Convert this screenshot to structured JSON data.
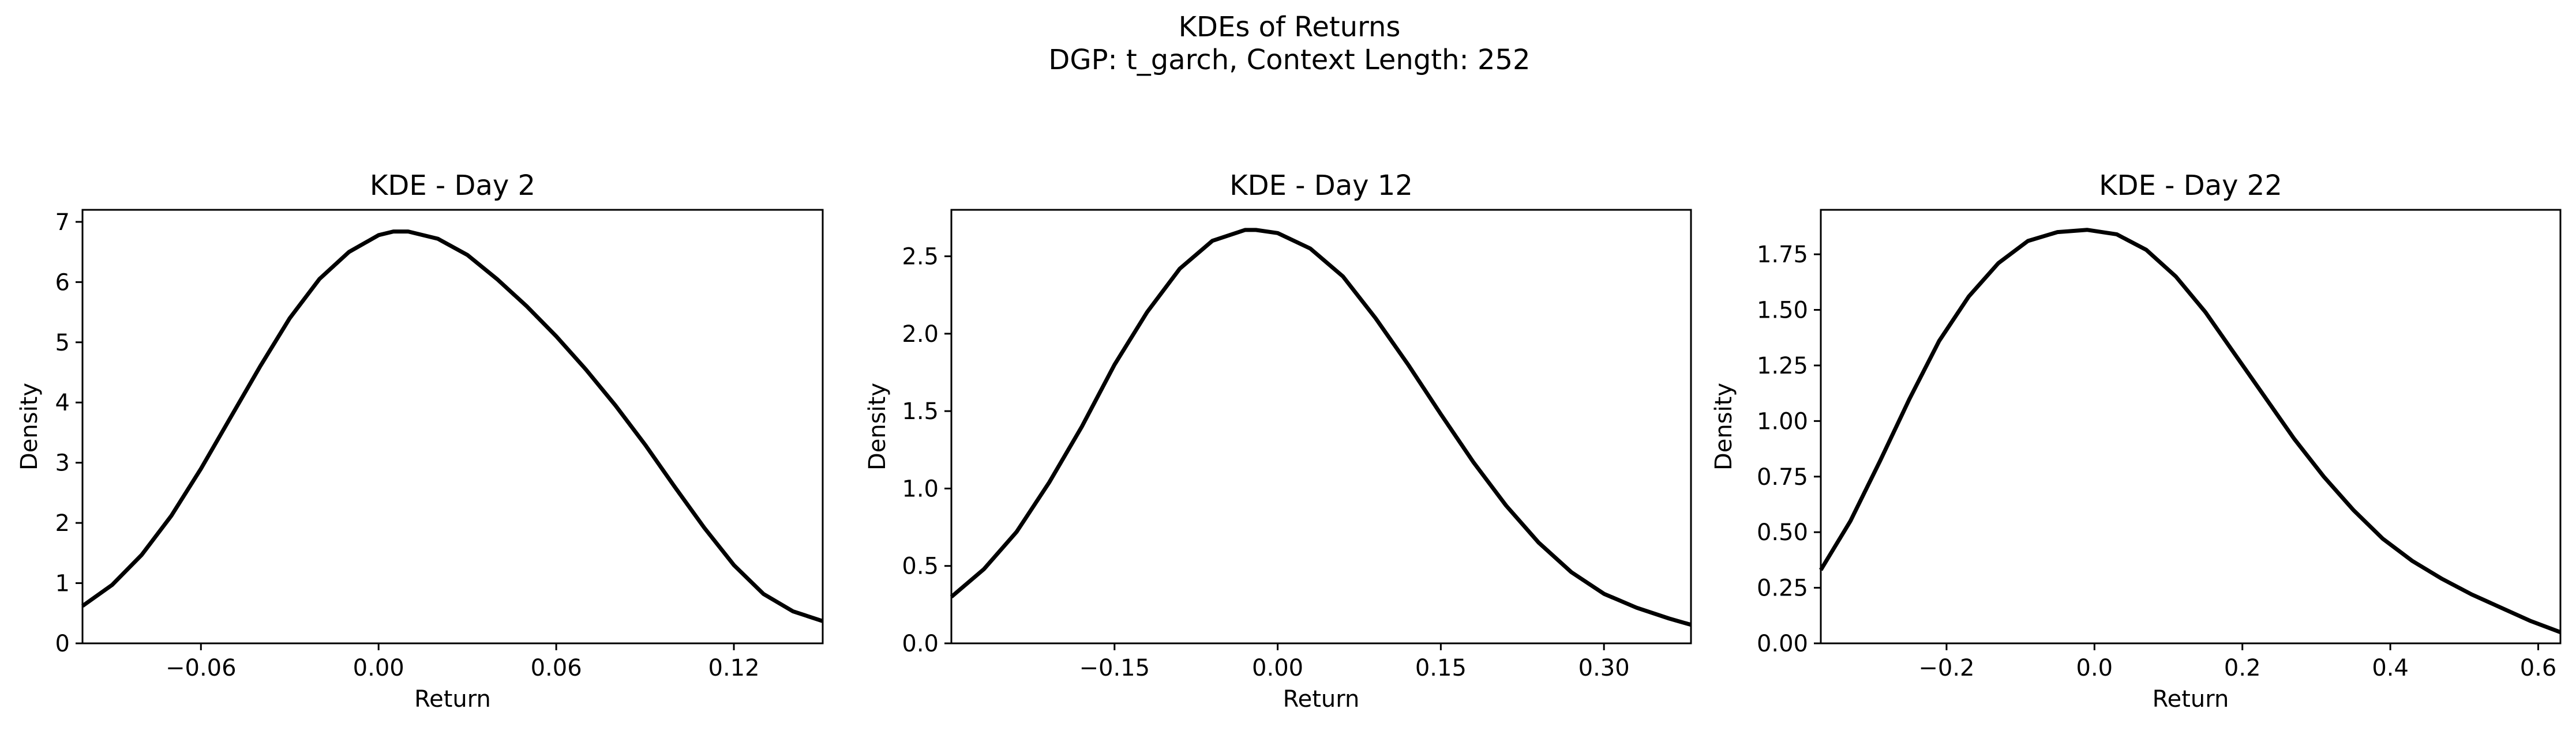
{
  "figure": {
    "title_line1": "KDEs of Returns",
    "title_line2": "DGP: t_garch, Context Length: 252"
  },
  "chart_data": [
    {
      "type": "line",
      "title": "KDE - Day 2",
      "xlabel": "Return",
      "ylabel": "Density",
      "xlim": [
        -0.1,
        0.15
      ],
      "ylim": [
        0,
        7.2
      ],
      "xticks": [
        -0.06,
        0.0,
        0.06,
        0.12
      ],
      "xtick_labels": [
        "−0.06",
        "0.00",
        "0.06",
        "0.12"
      ],
      "yticks": [
        0,
        1,
        2,
        3,
        4,
        5,
        6,
        7
      ],
      "ytick_labels": [
        "0",
        "1",
        "2",
        "3",
        "4",
        "5",
        "6",
        "7"
      ],
      "grid": false,
      "series": [
        {
          "color": "#000000",
          "x": [
            -0.1,
            -0.09,
            -0.08,
            -0.07,
            -0.06,
            -0.05,
            -0.04,
            -0.03,
            -0.02,
            -0.01,
            0.0,
            0.005,
            0.01,
            0.02,
            0.03,
            0.04,
            0.05,
            0.06,
            0.07,
            0.08,
            0.09,
            0.1,
            0.11,
            0.12,
            0.13,
            0.14,
            0.15
          ],
          "y": [
            0.62,
            0.97,
            1.47,
            2.12,
            2.9,
            3.75,
            4.6,
            5.4,
            6.05,
            6.5,
            6.78,
            6.84,
            6.84,
            6.72,
            6.45,
            6.05,
            5.6,
            5.1,
            4.55,
            3.95,
            3.3,
            2.6,
            1.92,
            1.3,
            0.82,
            0.53,
            0.37
          ]
        }
      ]
    },
    {
      "type": "line",
      "title": "KDE - Day 12",
      "xlabel": "Return",
      "ylabel": "Density",
      "xlim": [
        -0.3,
        0.38
      ],
      "ylim": [
        0,
        2.8
      ],
      "xticks": [
        -0.15,
        0.0,
        0.15,
        0.3
      ],
      "xtick_labels": [
        "−0.15",
        "0.00",
        "0.15",
        "0.30"
      ],
      "yticks": [
        0.0,
        0.5,
        1.0,
        1.5,
        2.0,
        2.5
      ],
      "ytick_labels": [
        "0.0",
        "0.5",
        "1.0",
        "1.5",
        "2.0",
        "2.5"
      ],
      "grid": false,
      "series": [
        {
          "color": "#000000",
          "x": [
            -0.3,
            -0.27,
            -0.24,
            -0.21,
            -0.18,
            -0.15,
            -0.12,
            -0.09,
            -0.06,
            -0.03,
            -0.02,
            0.0,
            0.03,
            0.06,
            0.09,
            0.12,
            0.15,
            0.18,
            0.21,
            0.24,
            0.27,
            0.3,
            0.33,
            0.36,
            0.38
          ],
          "y": [
            0.3,
            0.48,
            0.72,
            1.04,
            1.4,
            1.8,
            2.14,
            2.42,
            2.6,
            2.67,
            2.67,
            2.65,
            2.55,
            2.37,
            2.1,
            1.8,
            1.48,
            1.17,
            0.89,
            0.65,
            0.46,
            0.32,
            0.23,
            0.16,
            0.12
          ]
        }
      ]
    },
    {
      "type": "line",
      "title": "KDE - Day 22",
      "xlabel": "Return",
      "ylabel": "Density",
      "xlim": [
        -0.37,
        0.63
      ],
      "ylim": [
        0,
        1.95
      ],
      "xticks": [
        -0.2,
        0.0,
        0.2,
        0.4,
        0.6
      ],
      "xtick_labels": [
        "−0.2",
        "0.0",
        "0.2",
        "0.4",
        "0.6"
      ],
      "yticks": [
        0.0,
        0.25,
        0.5,
        0.75,
        1.0,
        1.25,
        1.5,
        1.75
      ],
      "ytick_labels": [
        "0.00",
        "0.25",
        "0.50",
        "0.75",
        "1.00",
        "1.25",
        "1.50",
        "1.75"
      ],
      "grid": false,
      "series": [
        {
          "color": "#000000",
          "x": [
            -0.37,
            -0.33,
            -0.29,
            -0.25,
            -0.21,
            -0.17,
            -0.13,
            -0.09,
            -0.05,
            -0.01,
            0.03,
            0.07,
            0.11,
            0.15,
            0.19,
            0.23,
            0.27,
            0.31,
            0.35,
            0.39,
            0.43,
            0.47,
            0.51,
            0.55,
            0.59,
            0.63
          ],
          "y": [
            0.33,
            0.55,
            0.82,
            1.1,
            1.36,
            1.56,
            1.71,
            1.81,
            1.85,
            1.86,
            1.84,
            1.77,
            1.65,
            1.49,
            1.3,
            1.11,
            0.92,
            0.75,
            0.6,
            0.47,
            0.37,
            0.29,
            0.22,
            0.16,
            0.1,
            0.05
          ]
        }
      ]
    }
  ]
}
